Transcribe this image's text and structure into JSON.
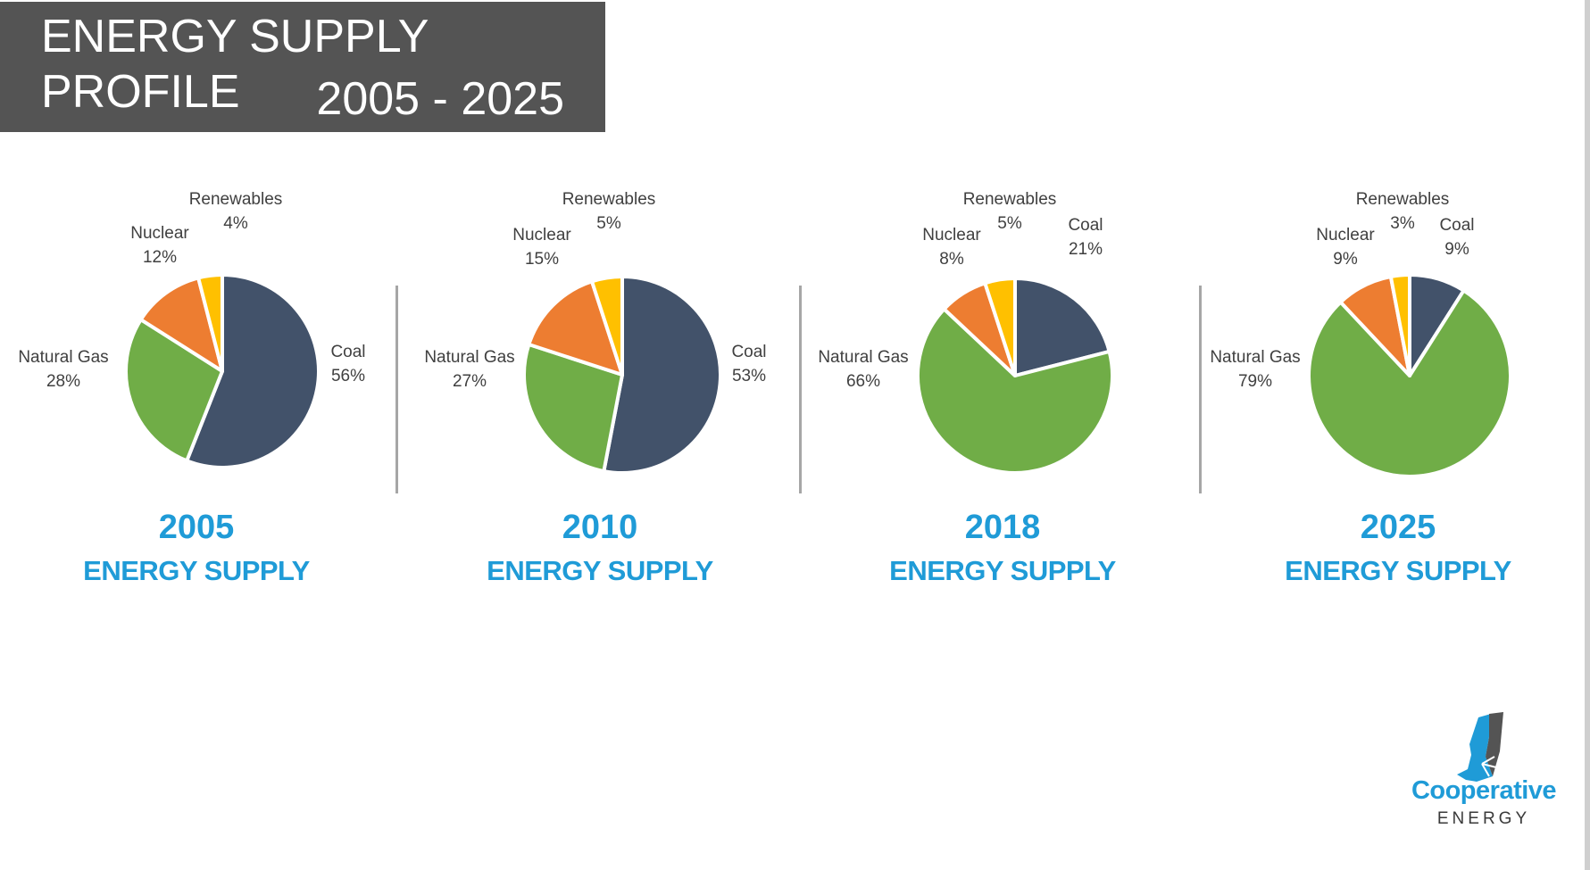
{
  "header": {
    "title_line1": "ENERGY SUPPLY PROFILE",
    "title_line2": "2005 - 2025"
  },
  "colors": {
    "Coal": "#42526a",
    "Natural Gas": "#70ad47",
    "Nuclear": "#ed7d31",
    "Renewables": "#ffc000",
    "accent": "#1f9bd7",
    "title_bg": "#545454"
  },
  "chart_data": [
    {
      "type": "pie",
      "year": "2005",
      "subtitle": "ENERGY SUPPLY",
      "slices": [
        {
          "label": "Coal",
          "value": 56,
          "display": "56%"
        },
        {
          "label": "Natural Gas",
          "value": 28,
          "display": "28%"
        },
        {
          "label": "Nuclear",
          "value": 12,
          "display": "12%"
        },
        {
          "label": "Renewables",
          "value": 4,
          "display": "4%"
        }
      ]
    },
    {
      "type": "pie",
      "year": "2010",
      "subtitle": "ENERGY SUPPLY",
      "slices": [
        {
          "label": "Coal",
          "value": 53,
          "display": "53%"
        },
        {
          "label": "Natural Gas",
          "value": 27,
          "display": "27%"
        },
        {
          "label": "Nuclear",
          "value": 15,
          "display": "15%"
        },
        {
          "label": "Renewables",
          "value": 5,
          "display": "5%"
        }
      ]
    },
    {
      "type": "pie",
      "year": "2018",
      "subtitle": "ENERGY SUPPLY",
      "slices": [
        {
          "label": "Coal",
          "value": 21,
          "display": "21%"
        },
        {
          "label": "Natural Gas",
          "value": 66,
          "display": "66%"
        },
        {
          "label": "Nuclear",
          "value": 8,
          "display": "8%"
        },
        {
          "label": "Renewables",
          "value": 5,
          "display": "5%"
        }
      ]
    },
    {
      "type": "pie",
      "year": "2025",
      "subtitle": "ENERGY SUPPLY",
      "slices": [
        {
          "label": "Coal",
          "value": 9,
          "display": "9%"
        },
        {
          "label": "Natural Gas",
          "value": 79,
          "display": "79%"
        },
        {
          "label": "Nuclear",
          "value": 9,
          "display": "9%"
        },
        {
          "label": "Renewables",
          "value": 3,
          "display": "3%"
        }
      ]
    }
  ],
  "logo": {
    "name": "Cooperative",
    "tagline": "ENERGY"
  }
}
